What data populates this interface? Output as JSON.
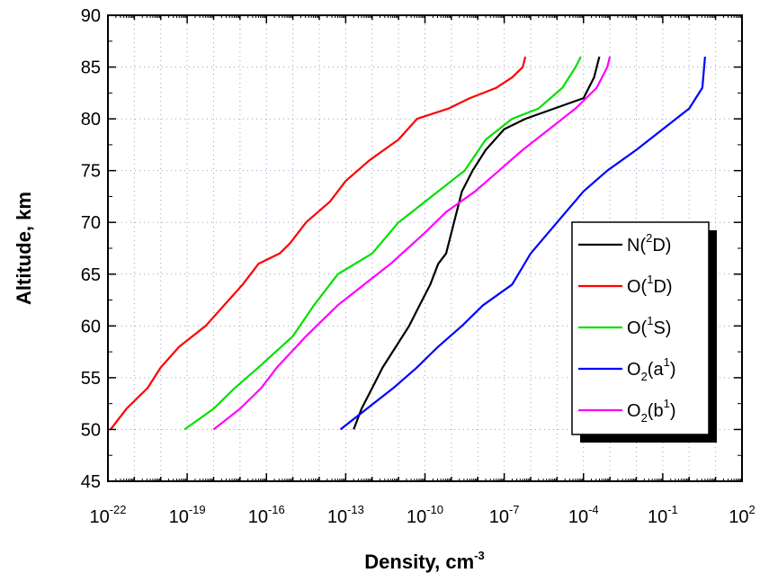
{
  "chart_data": {
    "type": "line",
    "xlabel": "Density, cm",
    "xlabel_sup": "-3",
    "ylabel": "Altitude, km",
    "x_scale": "log",
    "xlim_exponent": [
      -22,
      2
    ],
    "ylim": [
      45,
      90
    ],
    "y_ticks": [
      "45",
      "50",
      "55",
      "60",
      "65",
      "70",
      "75",
      "80",
      "85",
      "90"
    ],
    "x_tick_base": "10",
    "x_tick_exponents": [
      "-22",
      "-19",
      "-16",
      "-13",
      "-10",
      "-7",
      "-4",
      "-1",
      "2"
    ],
    "grid": true,
    "legend_position": "right",
    "series": [
      {
        "name": "N(2D)",
        "label": {
          "base": "N(",
          "sup": "2",
          "rest": "D)"
        },
        "color": "#000000",
        "log10_density": [
          -12.7,
          -12.4,
          -12.0,
          -11.6,
          -11.1,
          -10.6,
          -10.2,
          -9.8,
          -9.5,
          -9.2,
          -8.9,
          -8.6,
          -8.2,
          -7.7,
          -7.0,
          -6.2,
          -5.1,
          -4.0,
          -3.8,
          -3.6,
          -3.4
        ],
        "altitude": [
          50,
          52,
          54,
          56,
          58,
          60,
          62,
          64,
          66,
          67,
          70,
          73,
          75,
          77,
          79,
          80,
          81,
          82,
          83,
          84,
          86
        ]
      },
      {
        "name": "O(1D)",
        "label": {
          "base": "O(",
          "sup": "1",
          "rest": "D)"
        },
        "color": "#ff0000",
        "log10_density": [
          -21.9,
          -21.3,
          -20.5,
          -20.0,
          -19.3,
          -18.3,
          -17.6,
          -16.9,
          -16.3,
          -15.5,
          -15.1,
          -14.5,
          -13.6,
          -13.0,
          -12.1,
          -11.0,
          -10.3,
          -9.1,
          -8.3,
          -7.3,
          -6.7,
          -6.3,
          -6.2
        ],
        "altitude": [
          50,
          52,
          54,
          56,
          58,
          60,
          62,
          64,
          66,
          67,
          68,
          70,
          72,
          74,
          76,
          78,
          80,
          81,
          82,
          83,
          84,
          85,
          86
        ]
      },
      {
        "name": "O(1S)",
        "label": {
          "base": "O(",
          "sup": "1",
          "rest": "S)"
        },
        "color": "#00e000",
        "log10_density": [
          -19.1,
          -18.0,
          -17.2,
          -16.3,
          -15.0,
          -14.2,
          -13.3,
          -12.0,
          -11.0,
          -10.0,
          -8.5,
          -7.7,
          -6.7,
          -5.7,
          -4.8,
          -4.3,
          -4.1
        ],
        "altitude": [
          50,
          52,
          54,
          56,
          59,
          62,
          65,
          67,
          70,
          72,
          75,
          78,
          80,
          81,
          83,
          85,
          86
        ]
      },
      {
        "name": "O2(a1)",
        "label": {
          "base": "O",
          "sub": "2",
          "mid": "(a",
          "sup": "1",
          "rest": ")"
        },
        "color": "#0000ff",
        "log10_density": [
          -13.2,
          -12.2,
          -11.2,
          -10.3,
          -9.5,
          -8.6,
          -7.8,
          -6.7,
          -6.0,
          -5.0,
          -4.0,
          -3.1,
          -2.0,
          -1.0,
          0.0,
          0.5,
          0.6
        ],
        "altitude": [
          50,
          52,
          54,
          56,
          58,
          60,
          62,
          64,
          67,
          70,
          73,
          75,
          77,
          79,
          81,
          83,
          86
        ]
      },
      {
        "name": "O2(b1)",
        "label": {
          "base": "O",
          "sub": "2",
          "mid": "(b",
          "sup": "1",
          "rest": ")"
        },
        "color": "#ff00ff",
        "log10_density": [
          -18.0,
          -17.0,
          -16.2,
          -15.6,
          -14.5,
          -13.3,
          -12.3,
          -11.3,
          -10.0,
          -9.2,
          -8.1,
          -7.2,
          -6.3,
          -5.3,
          -4.3,
          -3.5,
          -3.1,
          -3.0
        ],
        "altitude": [
          50,
          52,
          54,
          56,
          59,
          62,
          64,
          66,
          69,
          71,
          73,
          75,
          77,
          79,
          81,
          83,
          85,
          86
        ]
      }
    ]
  }
}
